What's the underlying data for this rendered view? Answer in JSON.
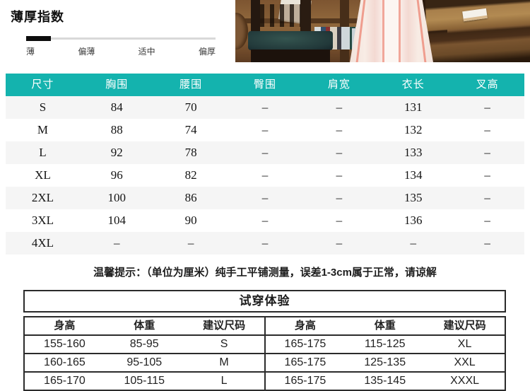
{
  "colors": {
    "accent": "#14b3ae",
    "row_alt": "#f5f5f5",
    "border_dark": "#2b2b2b"
  },
  "thickness": {
    "title": "薄厚指数",
    "labels": [
      "薄",
      "偏薄",
      "适中",
      "偏厚"
    ],
    "active_label": "薄",
    "active_index": 0
  },
  "size_table": {
    "headers": [
      "尺寸",
      "胸围",
      "腰围",
      "臀围",
      "肩宽",
      "衣长",
      "叉高"
    ],
    "rows": [
      [
        "S",
        "84",
        "70",
        "–",
        "–",
        "131",
        "–"
      ],
      [
        "M",
        "88",
        "74",
        "–",
        "–",
        "132",
        "–"
      ],
      [
        "L",
        "92",
        "78",
        "–",
        "–",
        "133",
        "–"
      ],
      [
        "XL",
        "96",
        "82",
        "–",
        "–",
        "134",
        "–"
      ],
      [
        "2XL",
        "100",
        "86",
        "–",
        "–",
        "135",
        "–"
      ],
      [
        "3XL",
        "104",
        "90",
        "–",
        "–",
        "136",
        "–"
      ],
      [
        "4XL",
        "–",
        "–",
        "–",
        "–",
        "–",
        "–"
      ]
    ]
  },
  "note": "温馨提示：（单位为厘米）纯手工平铺测量，误差1-3cm属于正常，请谅解",
  "fit_table": {
    "title": "试穿体验",
    "headers": [
      "身高",
      "体重",
      "建议尺码",
      "身高",
      "体重",
      "建议尺码"
    ],
    "rows": [
      [
        "155-160",
        "85-95",
        "S",
        "165-175",
        "115-125",
        "XL"
      ],
      [
        "160-165",
        "95-105",
        "M",
        "165-175",
        "125-135",
        "XXL"
      ],
      [
        "165-170",
        "105-115",
        "L",
        "165-175",
        "135-145",
        "XXXL"
      ]
    ]
  }
}
